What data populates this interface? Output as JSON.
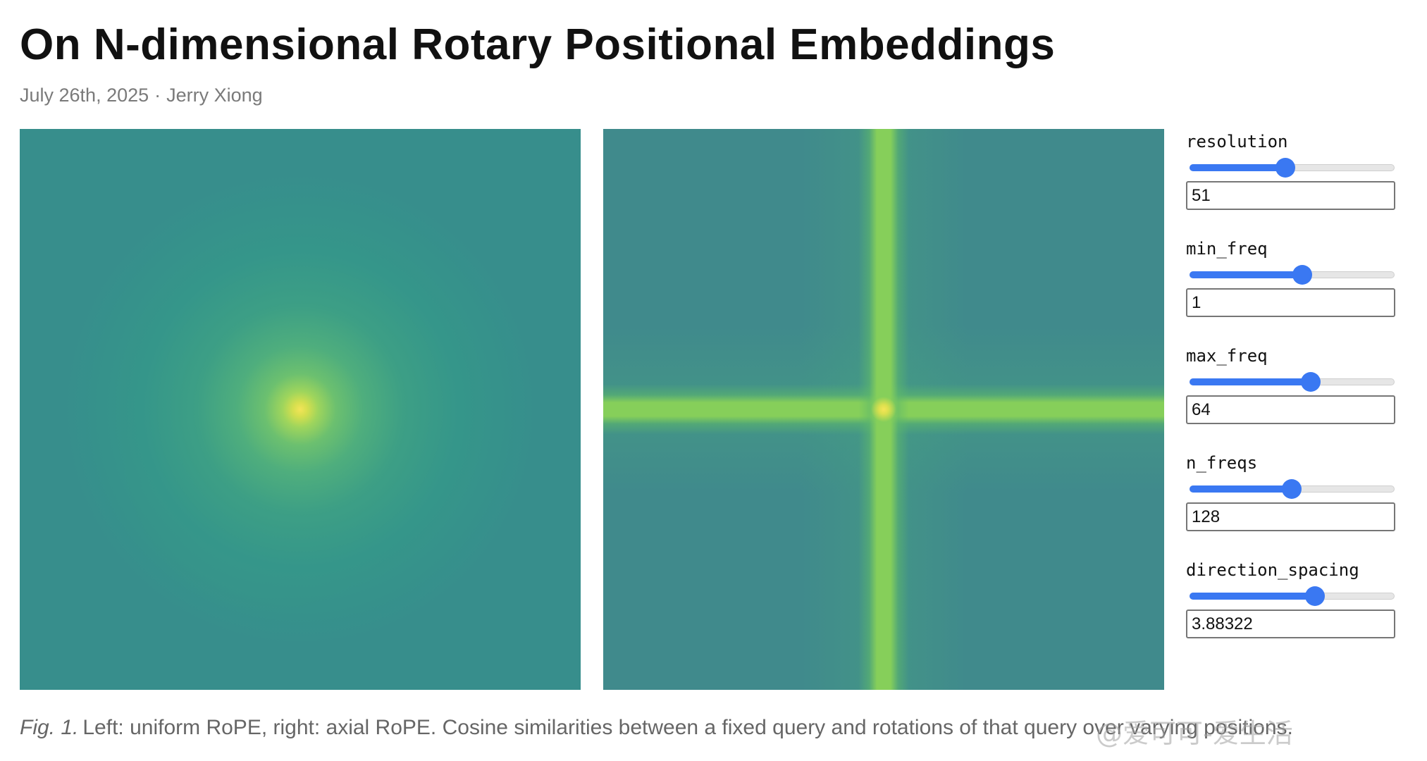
{
  "header": {
    "title": "On N-dimensional Rotary Positional Embeddings",
    "date": "July 26th, 2025",
    "author": "Jerry Xiong"
  },
  "controls": [
    {
      "label": "resolution",
      "value": "51"
    },
    {
      "label": "min_freq",
      "value": "1"
    },
    {
      "label": "max_freq",
      "value": "64"
    },
    {
      "label": "n_freqs",
      "value": "128"
    },
    {
      "label": "direction_spacing",
      "value": "3.88322"
    }
  ],
  "caption": {
    "label": "Fig. 1.",
    "text": "Left: uniform RoPE, right: axial RoPE. Cosine similarities between a fixed query and rotations of that query over varying positions."
  },
  "watermark": "@爱可可-爱生活"
}
